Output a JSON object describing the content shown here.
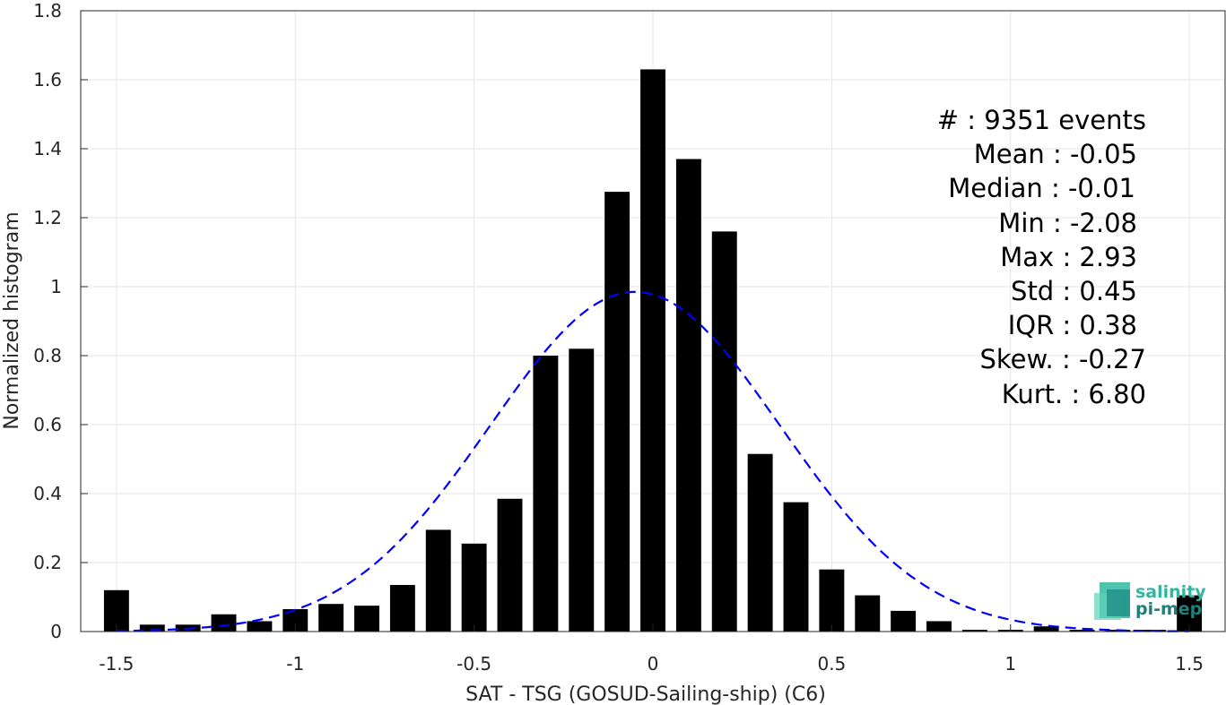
{
  "chart_data": {
    "type": "bar",
    "xlabel": "SAT - TSG (GOSUD-Sailing-ship) (C6)",
    "ylabel": "Normalized histogram",
    "xlim": [
      -1.6,
      1.6
    ],
    "ylim": [
      0,
      1.8
    ],
    "xticks": [
      -1.5,
      -1,
      -0.5,
      0,
      0.5,
      1,
      1.5
    ],
    "xtick_labels": [
      "-1.5",
      "-1",
      "-0.5",
      "0",
      "0.5",
      "1",
      "1.5"
    ],
    "yticks": [
      0,
      0.2,
      0.4,
      0.6,
      0.8,
      1,
      1.2,
      1.4,
      1.6,
      1.8
    ],
    "ytick_labels": [
      "0",
      "0.2",
      "0.4",
      "0.6",
      "0.8",
      "1",
      "1.2",
      "1.4",
      "1.6",
      "1.8"
    ],
    "grid": true,
    "bar_color": "#000000",
    "bar_width": 0.07,
    "categories": [
      -1.5,
      -1.4,
      -1.3,
      -1.2,
      -1.1,
      -1.0,
      -0.9,
      -0.8,
      -0.7,
      -0.6,
      -0.5,
      -0.4,
      -0.3,
      -0.2,
      -0.1,
      0.0,
      0.1,
      0.2,
      0.3,
      0.4,
      0.5,
      0.6,
      0.7,
      0.8,
      0.9,
      1.0,
      1.1,
      1.2,
      1.3,
      1.4,
      1.5
    ],
    "values": [
      0.12,
      0.02,
      0.02,
      0.05,
      0.03,
      0.065,
      0.08,
      0.075,
      0.135,
      0.295,
      0.255,
      0.385,
      0.8,
      0.82,
      1.275,
      1.63,
      1.37,
      1.16,
      0.515,
      0.375,
      0.18,
      0.105,
      0.06,
      0.03,
      0.005,
      0.005,
      0.015,
      0.005,
      0.005,
      0.005,
      0.105
    ],
    "fit_curve": {
      "type": "normal",
      "mean": -0.05,
      "std": 0.405,
      "color": "#0000ff",
      "style": "dashed"
    },
    "annotations": [
      "#  : 9351 events",
      "Mean : -0.05",
      "Median : -0.01",
      "Min : -2.08",
      "Max : 2.93",
      "Std : 0.45",
      "IQR : 0.38",
      "Skew. : -0.27",
      "Kurt. : 6.80"
    ]
  },
  "logo": {
    "line1": "salinity",
    "line2": "pi-mep",
    "color1": "#2fb8a0",
    "color2": "#1f7f7a"
  }
}
